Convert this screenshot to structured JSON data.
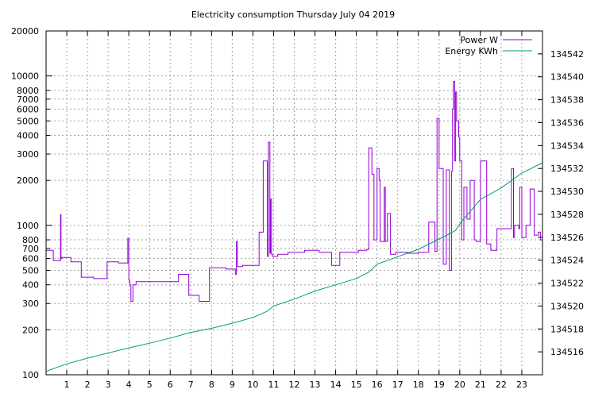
{
  "chart_data": {
    "type": "line",
    "title": "Electricity consumption Thursday July 04 2019",
    "x_axis": {
      "ticks": [
        1,
        2,
        3,
        4,
        5,
        6,
        7,
        8,
        9,
        10,
        11,
        12,
        13,
        14,
        15,
        16,
        17,
        18,
        19,
        20,
        21,
        22,
        23
      ],
      "range": [
        0,
        24
      ]
    },
    "y_axis_left": {
      "scale": "log",
      "range": [
        100,
        20000
      ],
      "ticks": [
        100,
        200,
        300,
        400,
        500,
        600,
        700,
        800,
        1000,
        2000,
        3000,
        4000,
        5000,
        6000,
        7000,
        8000,
        10000,
        20000
      ]
    },
    "y_axis_right": {
      "range": [
        134514,
        134544
      ],
      "ticks": [
        134516,
        134518,
        134520,
        134522,
        134524,
        134526,
        134528,
        134530,
        134532,
        134534,
        134536,
        134538,
        134540,
        134542
      ]
    },
    "grid": true,
    "legend_position": "top-right",
    "series": [
      {
        "name": "Power W",
        "axis": "left",
        "color": "#9400d3",
        "step": true,
        "x": [
          0,
          0.35,
          0.7,
          0.72,
          0.75,
          1.2,
          1.7,
          2.3,
          2.95,
          3.5,
          3.95,
          4.0,
          4.05,
          4.1,
          4.2,
          4.35,
          5.5,
          6.4,
          6.9,
          7.4,
          7.9,
          8.7,
          9.15,
          9.2,
          9.25,
          9.5,
          10.3,
          10.5,
          10.7,
          10.75,
          10.82,
          10.85,
          10.9,
          10.95,
          11.2,
          11.5,
          11.7,
          12.5,
          13.2,
          13.8,
          14.2,
          14.5,
          14.8,
          15.1,
          15.5,
          15.6,
          15.75,
          15.85,
          16.0,
          16.1,
          16.15,
          16.35,
          16.4,
          16.5,
          16.65,
          16.9,
          17.5,
          18.0,
          18.5,
          18.8,
          18.9,
          19.0,
          19.2,
          19.35,
          19.5,
          19.6,
          19.65,
          19.7,
          19.75,
          19.8,
          19.85,
          19.95,
          20.0,
          20.1,
          20.2,
          20.35,
          20.5,
          20.7,
          20.8,
          21.0,
          21.3,
          21.5,
          21.8,
          22.5,
          22.6,
          22.65,
          22.85,
          22.9,
          23.0,
          23.2,
          23.4,
          23.6,
          23.8,
          23.9,
          24.0
        ],
        "values": [
          680,
          580,
          1180,
          600,
          610,
          570,
          450,
          440,
          570,
          560,
          820,
          430,
          400,
          310,
          400,
          420,
          420,
          470,
          340,
          310,
          520,
          510,
          470,
          780,
          530,
          540,
          900,
          2700,
          620,
          3600,
          650,
          1500,
          640,
          620,
          640,
          640,
          660,
          680,
          660,
          540,
          660,
          660,
          660,
          680,
          690,
          3300,
          2200,
          800,
          2400,
          2000,
          780,
          1800,
          780,
          1200,
          640,
          660,
          650,
          660,
          1050,
          670,
          5200,
          2400,
          550,
          2350,
          500,
          2300,
          6000,
          9200,
          2700,
          7800,
          5000,
          3900,
          2700,
          800,
          1800,
          1100,
          2000,
          800,
          780,
          2700,
          750,
          680,
          950,
          2400,
          830,
          1000,
          950,
          1800,
          830,
          1000,
          1750,
          860,
          900,
          800,
          510
        ]
      },
      {
        "name": "Energy KWh",
        "axis": "right",
        "color": "#009e73",
        "x": [
          0,
          1,
          2,
          3,
          4,
          5,
          6,
          7,
          8,
          9,
          10,
          10.7,
          11,
          12,
          13,
          14,
          15,
          15.6,
          16,
          17,
          18,
          19,
          19.5,
          19.8,
          20.1,
          20.5,
          21,
          22,
          23,
          24
        ],
        "values": [
          134514.3,
          134514.95,
          134515.45,
          134515.9,
          134516.35,
          134516.75,
          134517.2,
          134517.7,
          134518.05,
          134518.5,
          134519.0,
          134519.55,
          134520.0,
          134520.6,
          134521.3,
          134521.85,
          134522.4,
          134522.95,
          134523.65,
          134524.3,
          134524.95,
          134525.85,
          134526.3,
          134526.6,
          134527.4,
          134528.25,
          134529.3,
          134530.3,
          134531.6,
          134532.5
        ]
      }
    ]
  }
}
